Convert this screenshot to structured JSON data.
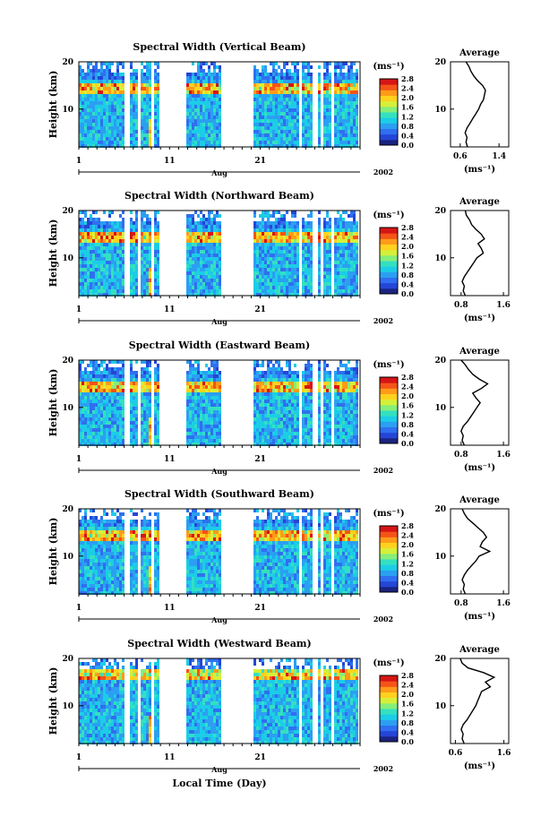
{
  "figure": {
    "xlabel": "Local Time (Day)",
    "month_label": "Aug",
    "year_label": "2002",
    "unit_label": "(ms⁻¹)",
    "avg_title": "Average",
    "colormap": [
      "#1a237e",
      "#2446d6",
      "#2f6ff0",
      "#2b9ff2",
      "#1ccde6",
      "#34e0c0",
      "#86ee7a",
      "#d6f03a",
      "#ffd21e",
      "#ff9b19",
      "#f55418",
      "#d61515"
    ]
  },
  "chart_data": [
    {
      "type": "heatmap",
      "title": "Spectral Width (Vertical Beam)",
      "ylabel": "Height (km)",
      "yticks": [
        "10",
        "20"
      ],
      "xticks": [
        "1",
        "11",
        "21"
      ],
      "colorbar_ticks": [
        "0.0",
        "0.4",
        "0.8",
        "1.2",
        "1.6",
        "2.0",
        "2.4",
        "2.8"
      ],
      "avg_xticks": [
        "0.6",
        "1.4"
      ],
      "avg_xlim": [
        0.4,
        1.6
      ],
      "avg_profile": {
        "height_km": [
          2,
          3,
          4,
          5,
          6,
          7,
          8,
          9,
          10,
          11,
          12,
          13,
          14,
          15,
          16,
          17,
          18,
          19,
          20
        ],
        "value": [
          0.75,
          0.72,
          0.74,
          0.7,
          0.74,
          0.8,
          0.86,
          0.92,
          0.98,
          1.02,
          1.08,
          1.1,
          1.12,
          1.06,
          0.96,
          0.88,
          0.82,
          0.78,
          0.72
        ]
      }
    },
    {
      "type": "heatmap",
      "title": "Spectral Width (Northward Beam)",
      "ylabel": "Height (km)",
      "yticks": [
        "10",
        "20"
      ],
      "xticks": [
        "1",
        "11",
        "21"
      ],
      "colorbar_ticks": [
        "0.0",
        "0.4",
        "0.8",
        "1.2",
        "1.6",
        "2.0",
        "2.4",
        "2.8"
      ],
      "avg_xticks": [
        "0.8",
        "1.6"
      ],
      "avg_xlim": [
        0.6,
        1.7
      ],
      "avg_profile": {
        "height_km": [
          2,
          3,
          4,
          5,
          6,
          7,
          8,
          9,
          10,
          11,
          12,
          13,
          14,
          15,
          16,
          17,
          18,
          19,
          20
        ],
        "value": [
          0.88,
          0.84,
          0.86,
          0.82,
          0.86,
          0.92,
          0.98,
          1.04,
          1.1,
          1.22,
          1.18,
          1.12,
          1.24,
          1.18,
          1.08,
          1.0,
          0.96,
          0.9,
          0.88
        ]
      }
    },
    {
      "type": "heatmap",
      "title": "Spectral Width (Eastward Beam)",
      "ylabel": "Height (km)",
      "yticks": [
        "10",
        "20"
      ],
      "xticks": [
        "1",
        "11",
        "21"
      ],
      "colorbar_ticks": [
        "0.0",
        "0.4",
        "0.8",
        "1.2",
        "1.6",
        "2.0",
        "2.4",
        "2.8"
      ],
      "avg_xticks": [
        "0.8",
        "1.6"
      ],
      "avg_xlim": [
        0.6,
        1.7
      ],
      "avg_profile": {
        "height_km": [
          2,
          3,
          4,
          5,
          6,
          7,
          8,
          9,
          10,
          11,
          12,
          13,
          14,
          15,
          16,
          17,
          18,
          19,
          20
        ],
        "value": [
          0.86,
          0.82,
          0.84,
          0.8,
          0.84,
          0.92,
          0.98,
          1.04,
          1.1,
          1.16,
          1.08,
          1.02,
          1.18,
          1.3,
          1.14,
          1.02,
          0.94,
          0.88,
          0.8
        ]
      }
    },
    {
      "type": "heatmap",
      "title": "Spectral Width (Southward Beam)",
      "ylabel": "Height (km)",
      "yticks": [
        "10",
        "20"
      ],
      "xticks": [
        "1",
        "11",
        "21"
      ],
      "colorbar_ticks": [
        "0.0",
        "0.4",
        "0.8",
        "1.2",
        "1.6",
        "2.0",
        "2.4",
        "2.8"
      ],
      "avg_xticks": [
        "0.8",
        "1.6"
      ],
      "avg_xlim": [
        0.6,
        1.7
      ],
      "avg_profile": {
        "height_km": [
          2,
          3,
          4,
          5,
          6,
          7,
          8,
          9,
          10,
          11,
          12,
          13,
          14,
          15,
          16,
          17,
          18,
          19,
          20
        ],
        "value": [
          0.88,
          0.84,
          0.86,
          0.82,
          0.86,
          0.92,
          1.0,
          1.08,
          1.14,
          1.34,
          1.16,
          1.2,
          1.28,
          1.22,
          1.12,
          1.02,
          0.92,
          0.86,
          0.82
        ]
      }
    },
    {
      "type": "heatmap",
      "title": "Spectral Width (Westward Beam)",
      "ylabel": "Height (km)",
      "yticks": [
        "10",
        "20"
      ],
      "xticks": [
        "1",
        "11",
        "21"
      ],
      "colorbar_ticks": [
        "0.0",
        "0.4",
        "0.8",
        "1.2",
        "1.6",
        "2.0",
        "2.4",
        "2.8"
      ],
      "avg_xticks": [
        "0.6",
        "1.6"
      ],
      "avg_xlim": [
        0.5,
        1.7
      ],
      "avg_profile": {
        "height_km": [
          2,
          3,
          4,
          5,
          6,
          7,
          8,
          9,
          10,
          11,
          12,
          13,
          14,
          15,
          16,
          17,
          18,
          19,
          20
        ],
        "value": [
          0.78,
          0.74,
          0.76,
          0.72,
          0.76,
          0.84,
          0.9,
          0.96,
          1.02,
          1.06,
          1.1,
          1.14,
          1.32,
          1.22,
          1.4,
          1.18,
          0.86,
          0.74,
          0.7
        ]
      }
    }
  ]
}
